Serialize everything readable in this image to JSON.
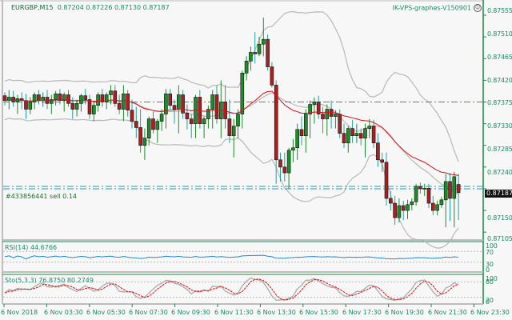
{
  "header": {
    "symbol": "EURGBP,M15",
    "ohlc": "0.87204 0.87226 0.87130 0.87187",
    "brand": "IK-VPS-graphes-V150901",
    "smiley": "☺"
  },
  "colors": {
    "background": "#f7f7f7",
    "bull": "#1e8c2a",
    "bear": "#a82020",
    "wick_teal": "#20a0a0",
    "bands": "#b8b8b8",
    "ma_red": "#dd1111",
    "hline_blue": "#1e90dd",
    "axis_green": "#1a8a3a",
    "label": "#1a8a6a"
  },
  "price_axis": {
    "ticks": [
      "0.87555",
      "0.87510",
      "0.87465",
      "0.87420",
      "0.87375",
      "0.87330",
      "0.87285",
      "0.87240",
      "0.87195",
      "0.87150",
      "0.87105"
    ],
    "current_price": "0.87187"
  },
  "main_chart": {
    "hline_label": "#433856441 sell 0.14",
    "hline_upper_price": 0.87375,
    "hline_lower_price": 0.87195,
    "chart_data": {
      "type": "candlestick",
      "title": "EURGBP,M15",
      "ylim": [
        0.87092,
        0.8758
      ],
      "candles": [
        [
          0.87388,
          0.87395,
          0.87368,
          0.87378
        ],
        [
          0.87378,
          0.874,
          0.8736,
          0.87385
        ],
        [
          0.87385,
          0.87398,
          0.87365,
          0.87375
        ],
        [
          0.87375,
          0.8739,
          0.8735,
          0.87382
        ],
        [
          0.87382,
          0.87395,
          0.8736,
          0.87378
        ],
        [
          0.87378,
          0.87392,
          0.8734,
          0.8736
        ],
        [
          0.8736,
          0.87385,
          0.8735,
          0.87375
        ],
        [
          0.87375,
          0.87395,
          0.8736,
          0.8739
        ],
        [
          0.8739,
          0.874,
          0.8737,
          0.87378
        ],
        [
          0.87378,
          0.87395,
          0.87365,
          0.87385
        ],
        [
          0.87385,
          0.874,
          0.8736,
          0.87372
        ],
        [
          0.87372,
          0.8739,
          0.8735,
          0.8738
        ],
        [
          0.8738,
          0.87398,
          0.87368,
          0.87392
        ],
        [
          0.87392,
          0.87402,
          0.8737,
          0.87378
        ],
        [
          0.87378,
          0.87395,
          0.87355,
          0.8739
        ],
        [
          0.8739,
          0.874,
          0.87365,
          0.87372
        ],
        [
          0.87372,
          0.87385,
          0.8734,
          0.8736
        ],
        [
          0.8736,
          0.8738,
          0.87345,
          0.87372
        ],
        [
          0.87372,
          0.87392,
          0.87355,
          0.87388
        ],
        [
          0.87388,
          0.87402,
          0.8737,
          0.8738
        ],
        [
          0.8738,
          0.8739,
          0.8734,
          0.8735
        ],
        [
          0.8735,
          0.87378,
          0.87335,
          0.87368
        ],
        [
          0.87368,
          0.87395,
          0.87355,
          0.8739
        ],
        [
          0.8739,
          0.87402,
          0.87365,
          0.87375
        ],
        [
          0.87375,
          0.87395,
          0.8736,
          0.8739
        ],
        [
          0.8739,
          0.8741,
          0.8737,
          0.87398
        ],
        [
          0.87398,
          0.8741,
          0.87365,
          0.87372
        ],
        [
          0.87372,
          0.8739,
          0.8735,
          0.8736
        ],
        [
          0.8736,
          0.8741,
          0.87335,
          0.87392
        ],
        [
          0.87392,
          0.874,
          0.87345,
          0.87358
        ],
        [
          0.87358,
          0.8738,
          0.8732,
          0.87335
        ],
        [
          0.87335,
          0.87365,
          0.873,
          0.87322
        ],
        [
          0.87322,
          0.8736,
          0.8727,
          0.87285
        ],
        [
          0.87285,
          0.8732,
          0.87255,
          0.873
        ],
        [
          0.873,
          0.87345,
          0.87285,
          0.8734
        ],
        [
          0.8734,
          0.87355,
          0.8731,
          0.87318
        ],
        [
          0.87318,
          0.8734,
          0.8729,
          0.87335
        ],
        [
          0.87335,
          0.8736,
          0.87315,
          0.8735
        ],
        [
          0.8735,
          0.87402,
          0.8732,
          0.87392
        ],
        [
          0.87392,
          0.87402,
          0.8736,
          0.87368
        ],
        [
          0.87368,
          0.8738,
          0.8733,
          0.8736
        ],
        [
          0.8736,
          0.8741,
          0.8731,
          0.8739
        ],
        [
          0.8739,
          0.874,
          0.8734,
          0.87352
        ],
        [
          0.87352,
          0.8737,
          0.87318,
          0.8734
        ],
        [
          0.8734,
          0.8735,
          0.873,
          0.8733
        ],
        [
          0.8733,
          0.8739,
          0.873,
          0.87385
        ],
        [
          0.87385,
          0.874,
          0.8732,
          0.8733
        ],
        [
          0.8733,
          0.87345,
          0.873,
          0.8734
        ],
        [
          0.8734,
          0.87368,
          0.8732,
          0.8736
        ],
        [
          0.8736,
          0.874,
          0.8732,
          0.8739
        ],
        [
          0.8739,
          0.8741,
          0.8733,
          0.8734
        ],
        [
          0.8734,
          0.8742,
          0.873,
          0.87375
        ],
        [
          0.87375,
          0.8741,
          0.8732,
          0.8734
        ],
        [
          0.8734,
          0.8738,
          0.8729,
          0.87305
        ],
        [
          0.87305,
          0.8734,
          0.8726,
          0.87325
        ],
        [
          0.87325,
          0.8736,
          0.873,
          0.8735
        ],
        [
          0.8735,
          0.8744,
          0.8732,
          0.87435
        ],
        [
          0.87435,
          0.8747,
          0.8742,
          0.8746
        ],
        [
          0.8746,
          0.8749,
          0.8744,
          0.87478
        ],
        [
          0.87478,
          0.8752,
          0.87455,
          0.87475
        ],
        [
          0.87475,
          0.8751,
          0.8747,
          0.87495
        ],
        [
          0.87495,
          0.8755,
          0.8747,
          0.87505
        ],
        [
          0.87505,
          0.87515,
          0.8744,
          0.87448
        ],
        [
          0.87448,
          0.87458,
          0.87405,
          0.8741
        ],
        [
          0.8741,
          0.8742,
          0.87205,
          0.87255
        ],
        [
          0.87255,
          0.8727,
          0.8721,
          0.8724
        ],
        [
          0.8724,
          0.8727,
          0.8721,
          0.87228
        ],
        [
          0.87228,
          0.8728,
          0.87195,
          0.87275
        ],
        [
          0.87275,
          0.87298,
          0.8725,
          0.8728
        ],
        [
          0.8728,
          0.8733,
          0.87255,
          0.87318
        ],
        [
          0.87318,
          0.87345,
          0.87285,
          0.87305
        ],
        [
          0.87305,
          0.8736,
          0.8727,
          0.8735
        ],
        [
          0.8735,
          0.87378,
          0.873,
          0.8737
        ],
        [
          0.8737,
          0.87385,
          0.8733,
          0.87375
        ],
        [
          0.87375,
          0.87388,
          0.8734,
          0.8735
        ],
        [
          0.8735,
          0.87365,
          0.8731,
          0.8734
        ],
        [
          0.8734,
          0.8737,
          0.87305,
          0.8736
        ],
        [
          0.8736,
          0.87378,
          0.8732,
          0.87345
        ],
        [
          0.87345,
          0.87358,
          0.8732,
          0.8735
        ],
        [
          0.8735,
          0.8736,
          0.873,
          0.8731
        ],
        [
          0.8731,
          0.8733,
          0.8728,
          0.8729
        ],
        [
          0.8729,
          0.87325,
          0.8727,
          0.8732
        ],
        [
          0.8732,
          0.87338,
          0.8729,
          0.87305
        ],
        [
          0.87305,
          0.8733,
          0.8729,
          0.8731
        ],
        [
          0.8731,
          0.8732,
          0.87285,
          0.873
        ],
        [
          0.873,
          0.8733,
          0.8726,
          0.8732
        ],
        [
          0.8732,
          0.8734,
          0.873,
          0.87325
        ],
        [
          0.87325,
          0.87338,
          0.8728,
          0.8729
        ],
        [
          0.8729,
          0.8731,
          0.8724,
          0.87255
        ],
        [
          0.87255,
          0.8727,
          0.8723,
          0.8725
        ],
        [
          0.8725,
          0.8727,
          0.8716,
          0.87175
        ],
        [
          0.87175,
          0.8719,
          0.8715,
          0.87165
        ],
        [
          0.87165,
          0.8718,
          0.8712,
          0.87135
        ],
        [
          0.87135,
          0.87175,
          0.87125,
          0.8716
        ],
        [
          0.8716,
          0.8717,
          0.8713,
          0.8715
        ],
        [
          0.8715,
          0.87172,
          0.87132,
          0.87162
        ],
        [
          0.87162,
          0.87175,
          0.8715,
          0.87168
        ],
        [
          0.87168,
          0.87205,
          0.8716,
          0.872
        ],
        [
          0.872,
          0.87208,
          0.87185,
          0.87195
        ],
        [
          0.87195,
          0.87205,
          0.8718,
          0.87196
        ],
        [
          0.87196,
          0.87205,
          0.87155,
          0.87165
        ],
        [
          0.87165,
          0.8718,
          0.8714,
          0.8715
        ],
        [
          0.8715,
          0.8717,
          0.8714,
          0.87162
        ],
        [
          0.87162,
          0.87178,
          0.87155,
          0.87172
        ],
        [
          0.87172,
          0.87225,
          0.87115,
          0.8721
        ],
        [
          0.8721,
          0.87228,
          0.87128,
          0.87175
        ],
        [
          0.87175,
          0.8723,
          0.87115,
          0.8722
        ],
        [
          0.87204,
          0.87226,
          0.8713,
          0.87187
        ]
      ]
    }
  },
  "rsi_panel": {
    "label": "RSI(14) 44.6766",
    "levels": [
      "100",
      "70",
      "30",
      "0"
    ]
  },
  "stoch_panel": {
    "label": "Sto(5,3,3) 76.8750 80.2749",
    "levels": [
      "100",
      "80",
      "20",
      "0"
    ]
  },
  "time_axis": {
    "labels": [
      "6 Nov 2018",
      "6 Nov 03:30",
      "6 Nov 05:30",
      "6 Nov 07:30",
      "6 Nov 09:30",
      "6 Nov 11:30",
      "6 Nov 13:30",
      "6 Nov 15:30",
      "6 Nov 17:30",
      "6 Nov 19:30",
      "6 Nov 21:30",
      "6 Nov 23:30"
    ]
  }
}
